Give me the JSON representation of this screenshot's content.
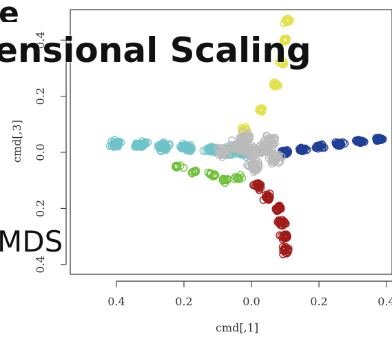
{
  "slide": {
    "title_line1": "e",
    "title_line2": "ensional Scaling",
    "subtitle": "MDS"
  },
  "chart_data": {
    "type": "scatter",
    "xlabel": "cmd[,1]",
    "ylabel": "cmd[,3]",
    "xlim": [
      -0.42,
      0.42
    ],
    "ylim": [
      -0.4,
      0.5
    ],
    "xticks": [
      -0.4,
      -0.2,
      0.0,
      0.2,
      0.4
    ],
    "xtick_labels": [
      "0.4",
      "0.2",
      "0.0",
      "0.2",
      "0.4"
    ],
    "yticks": [
      -0.4,
      -0.2,
      0.0,
      0.2,
      0.4
    ],
    "ytick_labels": [
      "0.4",
      "0.2",
      "0.0",
      "0.2",
      "0.4"
    ],
    "marker": "open-circle",
    "grid": false,
    "series": [
      {
        "color": "#6ec3c9",
        "centers": [
          [
            -0.4,
            0.03
          ],
          [
            -0.33,
            0.025
          ],
          [
            -0.26,
            0.02
          ],
          [
            -0.19,
            0.015
          ],
          [
            -0.12,
            0.01
          ],
          [
            -0.06,
            0.005
          ],
          [
            -0.02,
            0.0
          ]
        ],
        "spread": [
          0.03,
          0.02
        ],
        "count_per_center": 42
      },
      {
        "color": "#1f3f96",
        "centers": [
          [
            0.1,
            0.0
          ],
          [
            0.15,
            0.01
          ],
          [
            0.2,
            0.02
          ],
          [
            0.26,
            0.03
          ],
          [
            0.32,
            0.04
          ],
          [
            0.38,
            0.048
          ]
        ],
        "spread": [
          0.02,
          0.012
        ],
        "count_per_center": 26
      },
      {
        "color": "#a01a18",
        "centers": [
          [
            0.02,
            -0.12
          ],
          [
            0.05,
            -0.16
          ],
          [
            0.08,
            -0.2
          ],
          [
            0.09,
            -0.25
          ],
          [
            0.1,
            -0.3
          ],
          [
            0.1,
            -0.35
          ]
        ],
        "spread": [
          0.02,
          0.02
        ],
        "count_per_center": 20
      },
      {
        "color": "#e3e24a",
        "centers": [
          [
            -0.02,
            0.08
          ],
          [
            0.03,
            0.15
          ],
          [
            0.07,
            0.24
          ],
          [
            0.09,
            0.32
          ],
          [
            0.1,
            0.4
          ],
          [
            0.105,
            0.47
          ]
        ],
        "spread": [
          0.018,
          0.015
        ],
        "count_per_center": 12
      },
      {
        "color": "#6fc03a",
        "centers": [
          [
            -0.22,
            -0.05
          ],
          [
            -0.17,
            -0.07
          ],
          [
            -0.12,
            -0.08
          ],
          [
            -0.08,
            -0.1
          ],
          [
            -0.04,
            -0.09
          ]
        ],
        "spread": [
          0.025,
          0.012
        ],
        "count_per_center": 10
      },
      {
        "color": "#bbbbbb",
        "centers": [
          [
            -0.08,
            0.0
          ],
          [
            -0.04,
            0.02
          ],
          [
            0.0,
            0.0
          ],
          [
            0.04,
            0.01
          ],
          [
            0.07,
            -0.02
          ],
          [
            0.01,
            -0.05
          ],
          [
            -0.02,
            0.05
          ],
          [
            0.05,
            0.04
          ]
        ],
        "spread": [
          0.03,
          0.03
        ],
        "count_per_center": 34
      }
    ]
  }
}
